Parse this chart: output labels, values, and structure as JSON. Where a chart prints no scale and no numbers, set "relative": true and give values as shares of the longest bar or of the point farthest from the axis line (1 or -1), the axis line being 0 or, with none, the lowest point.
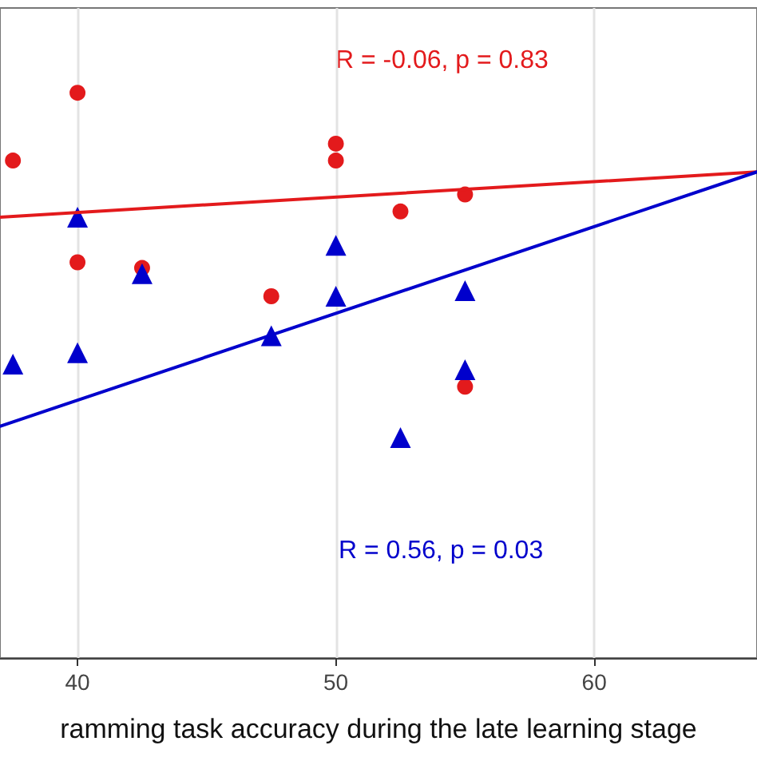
{
  "chart_data": {
    "type": "scatter",
    "relative": true,
    "xlabel": "ramming task accuracy during the late learning stage",
    "xlim": [
      37,
      66.3
    ],
    "xticks": [
      40,
      50,
      60
    ],
    "grid": "x",
    "annotations": [
      "R = -0.06, p = 0.83",
      "R = 0.56, p = 0.03"
    ],
    "series": [
      {
        "marker": "circle",
        "color": "#e31a1c",
        "x": [
          37.5,
          40,
          40,
          42.5,
          47.5,
          50,
          50,
          52.5,
          55,
          55
        ],
        "values": [
          0.88,
          1,
          0.7,
          0.69,
          0.64,
          0.91,
          0.88,
          0.79,
          0.82,
          0.48
        ]
      },
      {
        "marker": "triangle",
        "color": "#0000cc",
        "x": [
          37.5,
          40,
          40,
          42.5,
          47.5,
          50,
          50,
          52.5,
          55,
          55
        ],
        "values": [
          0.52,
          0.78,
          0.54,
          0.68,
          0.57,
          0.73,
          0.64,
          0.39,
          0.65,
          0.51
        ]
      },
      {
        "type": "line",
        "marker": "none",
        "color": "#e31a1c",
        "x": [
          37,
          66.3
        ],
        "values": [
          0.78,
          0.86
        ]
      },
      {
        "type": "line",
        "marker": "none",
        "color": "#0000cc",
        "x": [
          37,
          66.3
        ],
        "values": [
          0.41,
          0.86
        ]
      }
    ]
  }
}
